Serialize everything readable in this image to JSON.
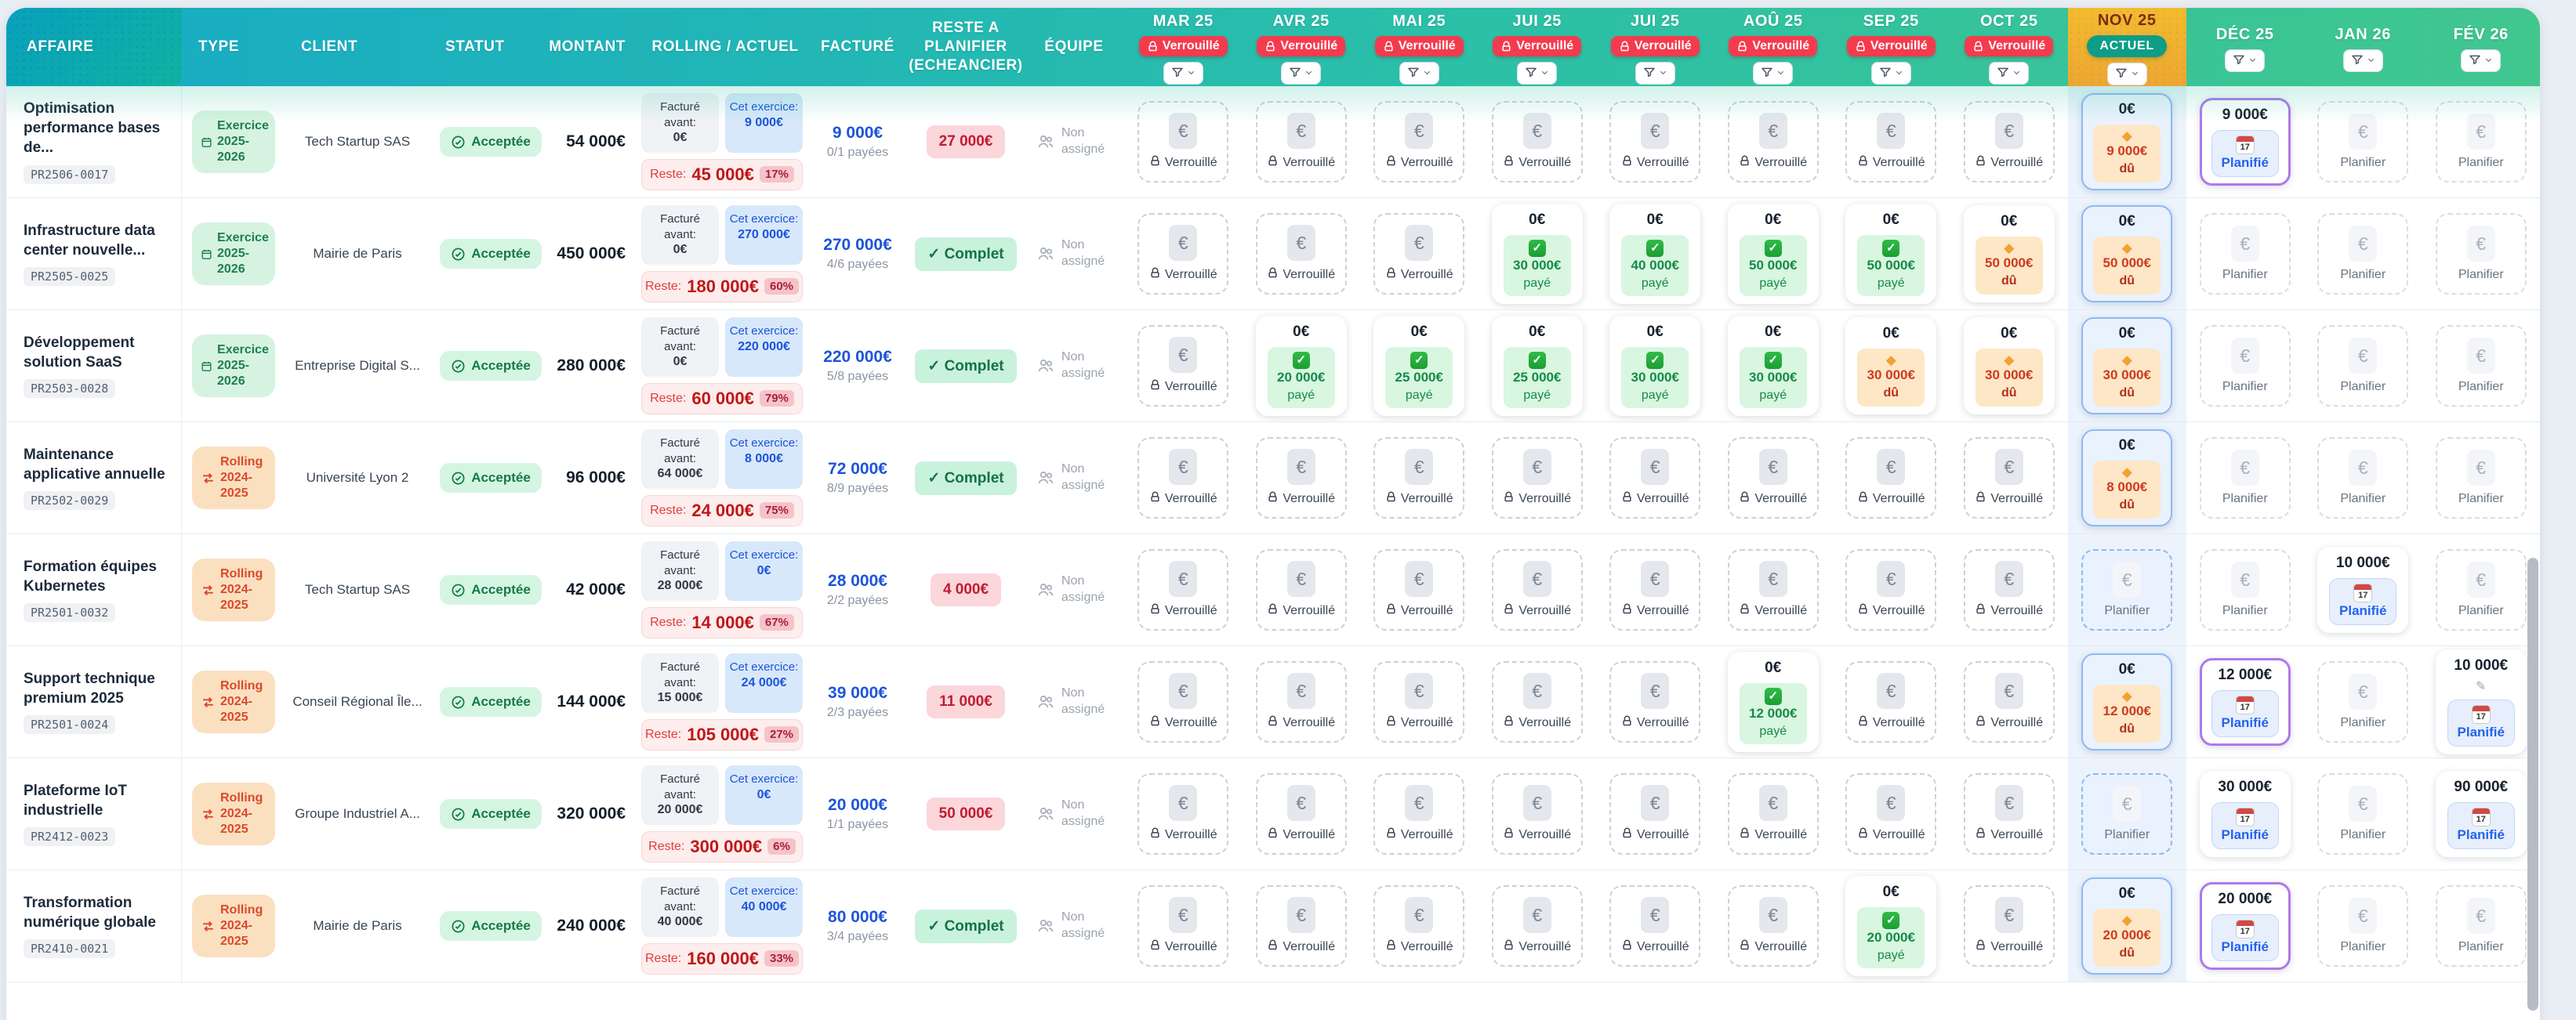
{
  "header": {
    "affaire": "AFFAIRE",
    "type": "TYPE",
    "client": "CLIENT",
    "statut": "STATUT",
    "montant": "MONTANT",
    "rolling": "ROLLING / ACTUEL",
    "facture": "FACTURÉ",
    "reste": "RESTE A PLANIFIER (ECHEANCIER)",
    "equipe": "ÉQUIPE",
    "verrouille": "Verrouillé",
    "actuel": "ACTUEL"
  },
  "months": [
    {
      "label": "MAR 25",
      "state": "locked"
    },
    {
      "label": "AVR 25",
      "state": "locked"
    },
    {
      "label": "MAI 25",
      "state": "locked"
    },
    {
      "label": "JUI 25",
      "state": "locked"
    },
    {
      "label": "JUI 25",
      "state": "locked"
    },
    {
      "label": "AOÛ 25",
      "state": "locked"
    },
    {
      "label": "SEP 25",
      "state": "locked"
    },
    {
      "label": "OCT 25",
      "state": "locked"
    },
    {
      "label": "NOV 25",
      "state": "current"
    },
    {
      "label": "DÉC 25",
      "state": "open"
    },
    {
      "label": "JAN 26",
      "state": "open"
    },
    {
      "label": "FÉV 26",
      "state": "open"
    }
  ],
  "labels": {
    "locked": "Verrouillé",
    "plan": "Planifier",
    "planned": "Planifié",
    "paid": "payé",
    "due": "dû",
    "reste": "Reste:",
    "facture_avant": "Facturé avant:",
    "cet_exercice": "Cet exercice:",
    "complet": "Complet",
    "complet_check": "✓",
    "non_assigne": "Non assigné",
    "cal_day": "17",
    "euro": "€"
  },
  "colors": {
    "header_teal_left": "#17abc6",
    "header_green_right": "#41c78e",
    "current_month": "#f3bb30",
    "locked_badge": "#f43b4e",
    "actuel_badge": "#0e9d86",
    "paid_green": "#168a47",
    "due_orange": "#cf3a20",
    "planned_blue": "#2563eb",
    "planned_purple": "#b078ea"
  },
  "rows": [
    {
      "name": "Optimisation performance bases de...",
      "code": "PR2506-0017",
      "type": {
        "kind": "exercice",
        "label": "Exercice 2025-2026"
      },
      "client": "Tech Startup SAS",
      "statut": "Acceptée",
      "montant": "54 000€",
      "rolling": {
        "avant": "0€",
        "exercice": "9 000€",
        "reste": "45 000€",
        "pct": "17%"
      },
      "facture": {
        "amount": "9 000€",
        "paid": "0/1 payées"
      },
      "reste": {
        "kind": "amount",
        "value": "27 000€"
      },
      "equipe": "Non assigné",
      "months": [
        {
          "t": "locked"
        },
        {
          "t": "locked"
        },
        {
          "t": "locked"
        },
        {
          "t": "locked"
        },
        {
          "t": "locked"
        },
        {
          "t": "locked"
        },
        {
          "t": "locked"
        },
        {
          "t": "locked"
        },
        {
          "t": "due",
          "top": "0€",
          "amt": "9 000€"
        },
        {
          "t": "planned",
          "amt": "9 000€",
          "purple": true
        },
        {
          "t": "plan"
        },
        {
          "t": "plan"
        }
      ]
    },
    {
      "name": "Infrastructure data center nouvelle...",
      "code": "PR2505-0025",
      "type": {
        "kind": "exercice",
        "label": "Exercice 2025-2026"
      },
      "client": "Mairie de Paris",
      "statut": "Acceptée",
      "montant": "450 000€",
      "rolling": {
        "avant": "0€",
        "exercice": "270 000€",
        "reste": "180 000€",
        "pct": "60%"
      },
      "facture": {
        "amount": "270 000€",
        "paid": "4/6 payées"
      },
      "reste": {
        "kind": "complet"
      },
      "equipe": "Non assigné",
      "months": [
        {
          "t": "locked"
        },
        {
          "t": "locked"
        },
        {
          "t": "locked"
        },
        {
          "t": "paid",
          "top": "0€",
          "amt": "30 000€"
        },
        {
          "t": "paid",
          "top": "0€",
          "amt": "40 000€"
        },
        {
          "t": "paid",
          "top": "0€",
          "amt": "50 000€"
        },
        {
          "t": "paid",
          "top": "0€",
          "amt": "50 000€"
        },
        {
          "t": "due",
          "top": "0€",
          "amt": "50 000€"
        },
        {
          "t": "due",
          "top": "0€",
          "amt": "50 000€"
        },
        {
          "t": "plan"
        },
        {
          "t": "plan"
        },
        {
          "t": "plan"
        }
      ]
    },
    {
      "name": "Développement solution SaaS",
      "code": "PR2503-0028",
      "type": {
        "kind": "exercice",
        "label": "Exercice 2025-2026"
      },
      "client": "Entreprise Digital S...",
      "statut": "Acceptée",
      "montant": "280 000€",
      "rolling": {
        "avant": "0€",
        "exercice": "220 000€",
        "reste": "60 000€",
        "pct": "79%"
      },
      "facture": {
        "amount": "220 000€",
        "paid": "5/8 payées"
      },
      "reste": {
        "kind": "complet"
      },
      "equipe": "Non assigné",
      "months": [
        {
          "t": "locked"
        },
        {
          "t": "paid",
          "top": "0€",
          "amt": "20 000€"
        },
        {
          "t": "paid",
          "top": "0€",
          "amt": "25 000€"
        },
        {
          "t": "paid",
          "top": "0€",
          "amt": "25 000€"
        },
        {
          "t": "paid",
          "top": "0€",
          "amt": "30 000€"
        },
        {
          "t": "paid",
          "top": "0€",
          "amt": "30 000€"
        },
        {
          "t": "due",
          "top": "0€",
          "amt": "30 000€"
        },
        {
          "t": "due",
          "top": "0€",
          "amt": "30 000€"
        },
        {
          "t": "due",
          "top": "0€",
          "amt": "30 000€"
        },
        {
          "t": "plan"
        },
        {
          "t": "plan"
        },
        {
          "t": "plan"
        }
      ]
    },
    {
      "name": "Maintenance applicative annuelle",
      "code": "PR2502-0029",
      "type": {
        "kind": "rolling",
        "label": "Rolling 2024-2025"
      },
      "client": "Université Lyon 2",
      "statut": "Acceptée",
      "montant": "96 000€",
      "rolling": {
        "avant": "64 000€",
        "exercice": "8 000€",
        "reste": "24 000€",
        "pct": "75%"
      },
      "facture": {
        "amount": "72 000€",
        "paid": "8/9 payées"
      },
      "reste": {
        "kind": "complet"
      },
      "equipe": "Non assigné",
      "months": [
        {
          "t": "locked"
        },
        {
          "t": "locked"
        },
        {
          "t": "locked"
        },
        {
          "t": "locked"
        },
        {
          "t": "locked"
        },
        {
          "t": "locked"
        },
        {
          "t": "locked"
        },
        {
          "t": "locked"
        },
        {
          "t": "due",
          "top": "0€",
          "amt": "8 000€"
        },
        {
          "t": "plan"
        },
        {
          "t": "plan"
        },
        {
          "t": "plan"
        }
      ]
    },
    {
      "name": "Formation équipes Kubernetes",
      "code": "PR2501-0032",
      "type": {
        "kind": "rolling",
        "label": "Rolling 2024-2025"
      },
      "client": "Tech Startup SAS",
      "statut": "Acceptée",
      "montant": "42 000€",
      "rolling": {
        "avant": "28 000€",
        "exercice": "0€",
        "reste": "14 000€",
        "pct": "67%"
      },
      "facture": {
        "amount": "28 000€",
        "paid": "2/2 payées"
      },
      "reste": {
        "kind": "amount",
        "value": "4 000€"
      },
      "equipe": "Non assigné",
      "months": [
        {
          "t": "locked"
        },
        {
          "t": "locked"
        },
        {
          "t": "locked"
        },
        {
          "t": "locked"
        },
        {
          "t": "locked"
        },
        {
          "t": "locked"
        },
        {
          "t": "locked"
        },
        {
          "t": "locked"
        },
        {
          "t": "plan_cur"
        },
        {
          "t": "plan"
        },
        {
          "t": "planned",
          "amt": "10 000€",
          "purple": false
        },
        {
          "t": "plan"
        }
      ]
    },
    {
      "name": "Support technique premium 2025",
      "code": "PR2501-0024",
      "type": {
        "kind": "rolling",
        "label": "Rolling 2024-2025"
      },
      "client": "Conseil Régional Île...",
      "statut": "Acceptée",
      "montant": "144 000€",
      "rolling": {
        "avant": "15 000€",
        "exercice": "24 000€",
        "reste": "105 000€",
        "pct": "27%"
      },
      "facture": {
        "amount": "39 000€",
        "paid": "2/3 payées"
      },
      "reste": {
        "kind": "amount",
        "value": "11 000€"
      },
      "equipe": "Non assigné",
      "months": [
        {
          "t": "locked"
        },
        {
          "t": "locked"
        },
        {
          "t": "locked"
        },
        {
          "t": "locked"
        },
        {
          "t": "locked"
        },
        {
          "t": "paid",
          "top": "0€",
          "amt": "12 000€"
        },
        {
          "t": "locked"
        },
        {
          "t": "locked"
        },
        {
          "t": "due",
          "top": "0€",
          "amt": "12 000€"
        },
        {
          "t": "planned",
          "amt": "12 000€",
          "purple": true
        },
        {
          "t": "plan"
        },
        {
          "t": "planned",
          "amt": "10 000€",
          "purple": false,
          "pencil": true
        }
      ]
    },
    {
      "name": "Plateforme IoT industrielle",
      "code": "PR2412-0023",
      "type": {
        "kind": "rolling",
        "label": "Rolling 2024-2025"
      },
      "client": "Groupe Industriel A...",
      "statut": "Acceptée",
      "montant": "320 000€",
      "rolling": {
        "avant": "20 000€",
        "exercice": "0€",
        "reste": "300 000€",
        "pct": "6%"
      },
      "facture": {
        "amount": "20 000€",
        "paid": "1/1 payées"
      },
      "reste": {
        "kind": "amount",
        "value": "50 000€"
      },
      "equipe": "Non assigné",
      "months": [
        {
          "t": "locked"
        },
        {
          "t": "locked"
        },
        {
          "t": "locked"
        },
        {
          "t": "locked"
        },
        {
          "t": "locked"
        },
        {
          "t": "locked"
        },
        {
          "t": "locked"
        },
        {
          "t": "locked"
        },
        {
          "t": "plan_cur"
        },
        {
          "t": "planned",
          "amt": "30 000€",
          "purple": false
        },
        {
          "t": "plan"
        },
        {
          "t": "planned",
          "amt": "90 000€",
          "purple": false
        }
      ]
    },
    {
      "name": "Transformation numérique globale",
      "code": "PR2410-0021",
      "type": {
        "kind": "rolling",
        "label": "Rolling 2024-2025"
      },
      "client": "Mairie de Paris",
      "statut": "Acceptée",
      "montant": "240 000€",
      "rolling": {
        "avant": "40 000€",
        "exercice": "40 000€",
        "reste": "160 000€",
        "pct": "33%"
      },
      "facture": {
        "amount": "80 000€",
        "paid": "3/4 payées"
      },
      "reste": {
        "kind": "complet"
      },
      "equipe": "Non assigné",
      "months": [
        {
          "t": "locked"
        },
        {
          "t": "locked"
        },
        {
          "t": "locked"
        },
        {
          "t": "locked"
        },
        {
          "t": "locked"
        },
        {
          "t": "locked"
        },
        {
          "t": "paid",
          "top": "0€",
          "amt": "20 000€"
        },
        {
          "t": "locked"
        },
        {
          "t": "due",
          "top": "0€",
          "amt": "20 000€"
        },
        {
          "t": "planned",
          "amt": "20 000€",
          "purple": true
        },
        {
          "t": "plan"
        },
        {
          "t": "plan"
        }
      ]
    }
  ]
}
